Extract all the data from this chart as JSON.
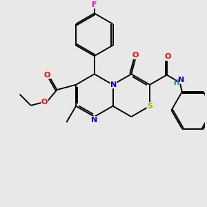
{
  "bg_color": "#e8e8e8",
  "bond_color": "#000000",
  "bond_width": 1.4,
  "atom_colors": {
    "N": "#0000dd",
    "O": "#ff0000",
    "S": "#aaaa00",
    "F": "#ff00ff",
    "H": "#008888",
    "C": "#000000"
  },
  "font_size": 7.5,
  "figsize": [
    3.0,
    3.0
  ],
  "dpi": 100
}
